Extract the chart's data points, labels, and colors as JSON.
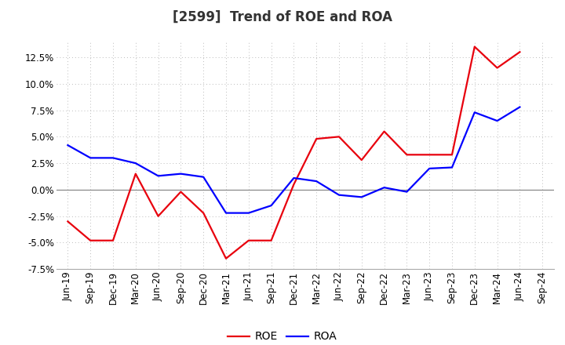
{
  "title": "[2599]  Trend of ROE and ROA",
  "x_labels": [
    "Jun-19",
    "Sep-19",
    "Dec-19",
    "Mar-20",
    "Jun-20",
    "Sep-20",
    "Dec-20",
    "Mar-21",
    "Jun-21",
    "Sep-21",
    "Dec-21",
    "Mar-22",
    "Jun-22",
    "Sep-22",
    "Dec-22",
    "Mar-23",
    "Jun-23",
    "Sep-23",
    "Dec-23",
    "Mar-24",
    "Jun-24",
    "Sep-24"
  ],
  "roe": [
    -3.0,
    -4.8,
    -4.8,
    1.5,
    -2.5,
    -0.2,
    -2.2,
    -6.5,
    -4.8,
    -4.8,
    0.5,
    4.8,
    5.0,
    2.8,
    5.5,
    3.3,
    3.3,
    3.3,
    13.5,
    11.5,
    13.0,
    null
  ],
  "roa": [
    4.2,
    3.0,
    3.0,
    2.5,
    1.3,
    1.5,
    1.2,
    -2.2,
    -2.2,
    -1.5,
    1.1,
    0.8,
    -0.5,
    -0.7,
    0.2,
    -0.2,
    2.0,
    2.1,
    7.3,
    6.5,
    7.8,
    null
  ],
  "roe_color": "#e8000d",
  "roa_color": "#0000ff",
  "ylim": [
    -7.5,
    14.0
  ],
  "yticks": [
    -7.5,
    -5.0,
    -2.5,
    0.0,
    2.5,
    5.0,
    7.5,
    10.0,
    12.5
  ],
  "background_color": "#ffffff",
  "grid_color": "#bbbbbb",
  "zero_line_color": "#888888",
  "legend_labels": [
    "ROE",
    "ROA"
  ],
  "title_fontsize": 12,
  "tick_fontsize": 8.5,
  "legend_fontsize": 10
}
